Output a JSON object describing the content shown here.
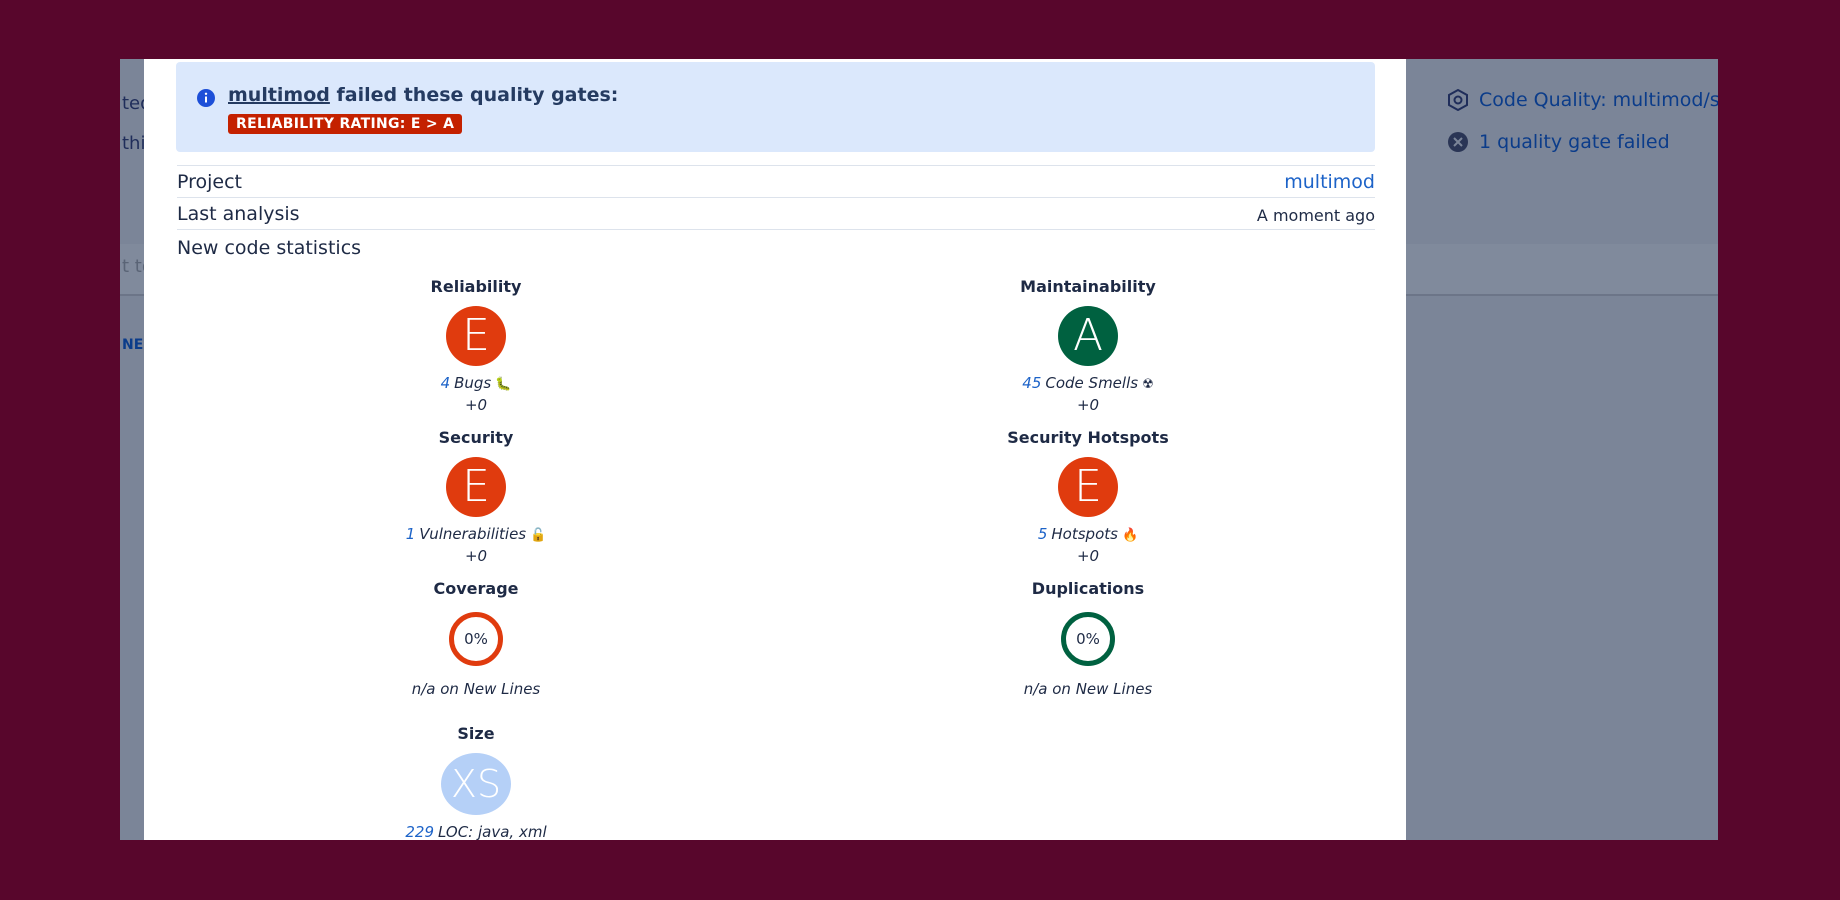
{
  "background_page": {
    "left_fragments": [
      "ted",
      "this",
      "t to",
      "NE"
    ],
    "right_links": [
      {
        "icon": "hexagon-icon",
        "label": "Code Quality: multimod/src"
      },
      {
        "icon": "close-circle-icon",
        "label": "1 quality gate failed"
      }
    ]
  },
  "banner": {
    "icon": "info-icon",
    "project": "multimod",
    "message": " failed these quality gates:",
    "gate": "RELIABILITY RATING: E > A"
  },
  "info": {
    "project_label": "Project",
    "project_value": "multimod",
    "analysis_label": "Last analysis",
    "analysis_value": "A moment ago",
    "stats_title": "New code statistics"
  },
  "metrics": {
    "reliability": {
      "title": "Reliability",
      "rating": "E",
      "count": "4",
      "label": "Bugs",
      "emoji": "🐛",
      "delta": "+0",
      "color": "#e03b0e"
    },
    "maintainability": {
      "title": "Maintainability",
      "rating": "A",
      "count": "45",
      "label": "Code Smells",
      "emoji": "☢",
      "delta": "+0",
      "color": "#006140"
    },
    "security": {
      "title": "Security",
      "rating": "E",
      "count": "1",
      "label": "Vulnerabilities",
      "emoji": "🔓",
      "delta": "+0",
      "color": "#e03b0e"
    },
    "hotspots": {
      "title": "Security Hotspots",
      "rating": "E",
      "count": "5",
      "label": "Hotspots",
      "emoji": "🔥",
      "delta": "+0",
      "color": "#e03b0e"
    },
    "coverage": {
      "title": "Coverage",
      "value": "0%",
      "note": "n/a on New Lines",
      "color": "#e03b0e"
    },
    "duplications": {
      "title": "Duplications",
      "value": "0%",
      "note": "n/a on New Lines",
      "color": "#006140"
    },
    "size": {
      "title": "Size",
      "rating": "XS",
      "count": "229",
      "label": "LOC: java, xml",
      "color": "#b5d0f7"
    }
  }
}
